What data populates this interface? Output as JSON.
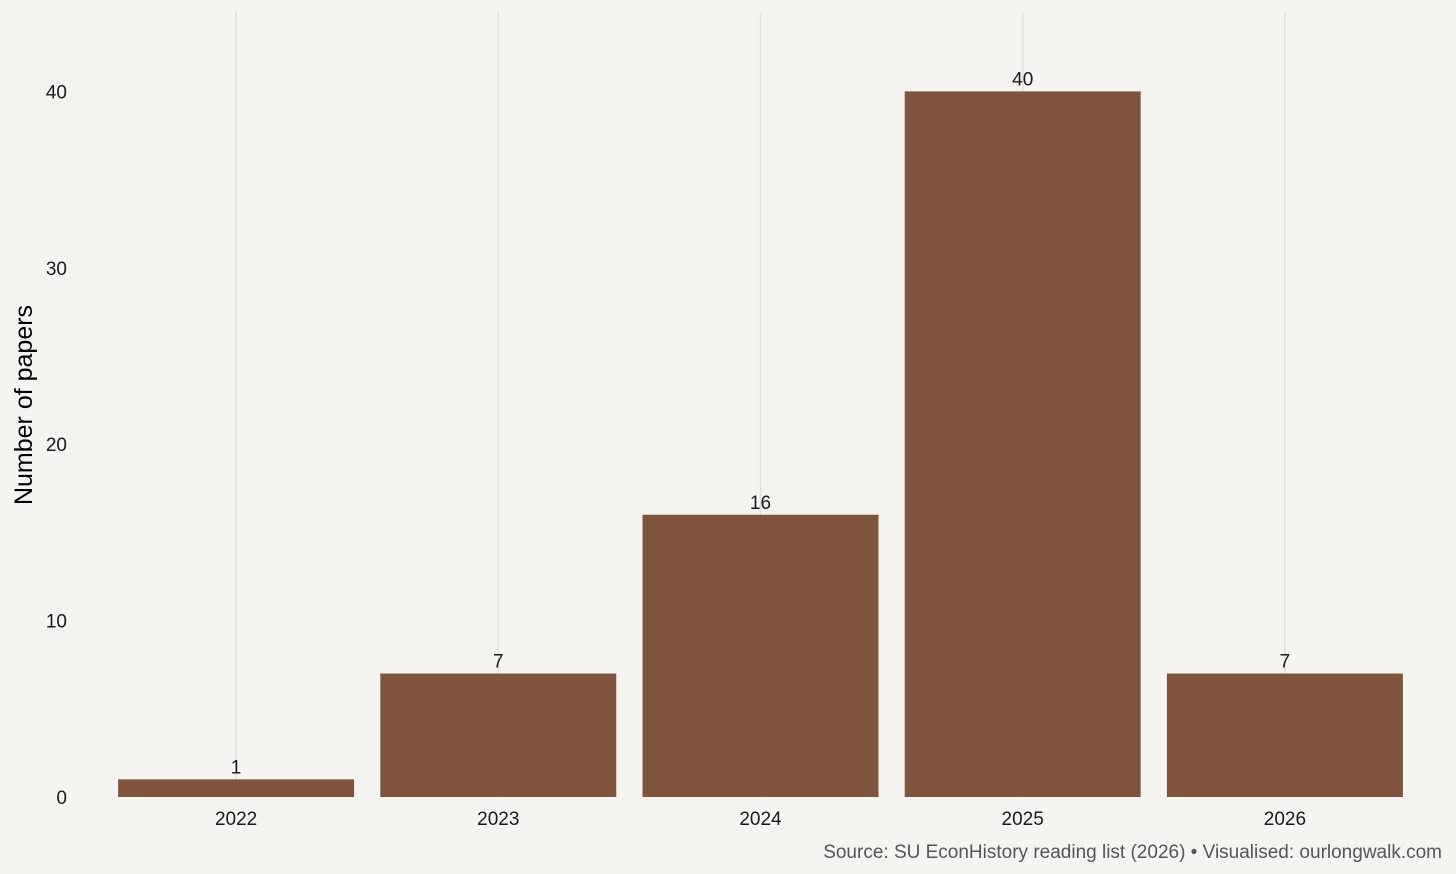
{
  "chart_data": {
    "type": "bar",
    "categories": [
      "2022",
      "2023",
      "2024",
      "2025",
      "2026"
    ],
    "values": [
      1,
      7,
      16,
      40,
      7
    ],
    "data_labels": [
      "1",
      "7",
      "16",
      "40",
      "7"
    ],
    "title": "",
    "xlabel": "",
    "ylabel": "Number of papers",
    "ylim": [
      0,
      44.5
    ],
    "yticks": [
      0,
      10,
      20,
      30,
      40
    ],
    "ytick_labels": [
      "0",
      "10",
      "20",
      "30",
      "40"
    ],
    "grid": "vertical",
    "legend": "none",
    "bar_color": "#7a4f36",
    "background_color": "#f6f4f0",
    "caption": "Source: SU EconHistory reading list (2026) • Visualised: ourlongwalk.com"
  }
}
